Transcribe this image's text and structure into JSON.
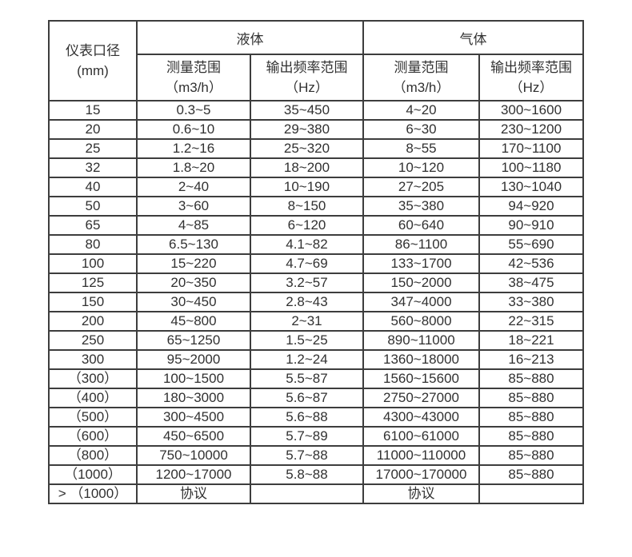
{
  "colors": {
    "background": "#ffffff",
    "border": "#3d3d3d",
    "text": "#313131"
  },
  "table": {
    "header": {
      "diameter": {
        "label": "仪表口径",
        "unit": "(mm)"
      },
      "liquid": {
        "label": "液体"
      },
      "gas": {
        "label": "气体"
      },
      "liquid_measure": {
        "label": "测量范围",
        "unit": "（m3/h）"
      },
      "liquid_freq": {
        "label": "输出频率范围",
        "unit": "（Hz）"
      },
      "gas_measure": {
        "label": "测量范围",
        "unit": "（m3/h）"
      },
      "gas_freq": {
        "label": "输出频率范围",
        "unit": "（Hz）"
      }
    },
    "rows": [
      [
        "15",
        "0.3~5",
        "35~450",
        "4~20",
        "300~1600"
      ],
      [
        "20",
        "0.6~10",
        "29~380",
        "6~30",
        "230~1200"
      ],
      [
        "25",
        "1.2~16",
        "25~320",
        "8~55",
        "170~1100"
      ],
      [
        "32",
        "1.8~20",
        "18~200",
        "10~120",
        "100~1180"
      ],
      [
        "40",
        "2~40",
        "10~190",
        "27~205",
        "130~1040"
      ],
      [
        "50",
        "3~60",
        "8~150",
        "35~380",
        "94~920"
      ],
      [
        "65",
        "4~85",
        "6~120",
        "60~640",
        "90~910"
      ],
      [
        "80",
        "6.5~130",
        "4.1~82",
        "86~1100",
        "55~690"
      ],
      [
        "100",
        "15~220",
        "4.7~69",
        "133~1700",
        "42~536"
      ],
      [
        "125",
        "20~350",
        "3.2~57",
        "150~2000",
        "38~475"
      ],
      [
        "150",
        "30~450",
        "2.8~43",
        "347~4000",
        "33~380"
      ],
      [
        "200",
        "45~800",
        "2~31",
        "560~8000",
        "22~315"
      ],
      [
        "250",
        "65~1250",
        "1.5~25",
        "890~11000",
        "18~221"
      ],
      [
        "300",
        "95~2000",
        "1.2~24",
        "1360~18000",
        "16~213"
      ],
      [
        "（300）",
        "100~1500",
        "5.5~87",
        "1560~15600",
        "85~880"
      ],
      [
        "（400）",
        "180~3000",
        "5.6~87",
        "2750~27000",
        "85~880"
      ],
      [
        "（500）",
        "300~4500",
        "5.6~88",
        "4300~43000",
        "85~880"
      ],
      [
        "（600）",
        "450~6500",
        "5.7~89",
        "6100~61000",
        "85~880"
      ],
      [
        "（800）",
        "750~10000",
        "5.7~88",
        "11000~110000",
        "85~880"
      ],
      [
        "（1000）",
        "1200~17000",
        "5.8~88",
        "17000~170000",
        "85~880"
      ],
      [
        "> （1000）",
        "协议",
        "",
        "协议",
        ""
      ]
    ]
  }
}
